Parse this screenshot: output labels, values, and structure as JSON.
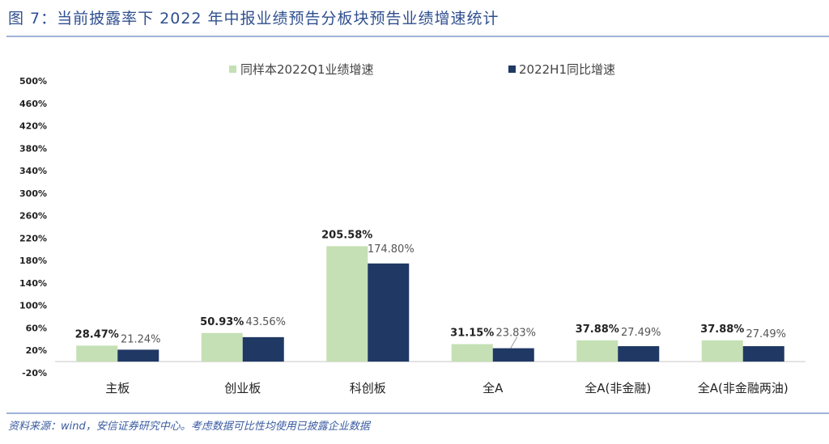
{
  "header": {
    "title": "图 7：当前披露率下 2022 年中报业绩预告分板块预告业绩增速统计"
  },
  "footer": {
    "source": "资料来源：wind，安信证券研究中心。考虑数据可比性均使用已披露企业数据"
  },
  "colors": {
    "series1": "#c5e0b4",
    "series2": "#1f3864",
    "rule": "#9fb3d8",
    "title": "#2f4f8f"
  },
  "chart_data": {
    "type": "bar",
    "title": "当前披露率下 2022 年中报业绩预告分板块预告业绩增速统计",
    "xlabel": "",
    "ylabel": "",
    "ylim": [
      -20,
      500
    ],
    "yticks": [
      "500%",
      "460%",
      "420%",
      "380%",
      "340%",
      "300%",
      "260%",
      "220%",
      "180%",
      "140%",
      "100%",
      "60%",
      "20%",
      "-20%"
    ],
    "grid": false,
    "legend_position": "top",
    "categories": [
      "主板",
      "创业板",
      "科创板",
      "全A",
      "全A(非金融)",
      "全A(非金融两油)"
    ],
    "series": [
      {
        "name": "同样本2022Q1业绩增速",
        "values": [
          28.47,
          50.93,
          205.58,
          31.15,
          37.88,
          37.88
        ],
        "labels": [
          "28.47%",
          "50.93%",
          "205.58%",
          "31.15%",
          "37.88%",
          "37.88%"
        ]
      },
      {
        "name": "2022H1同比增速",
        "values": [
          21.24,
          43.56,
          174.8,
          23.83,
          27.49,
          27.49
        ],
        "labels": [
          "21.24%",
          "43.56%",
          "174.80%",
          "23.83%",
          "27.49%",
          "27.49%"
        ]
      }
    ]
  }
}
